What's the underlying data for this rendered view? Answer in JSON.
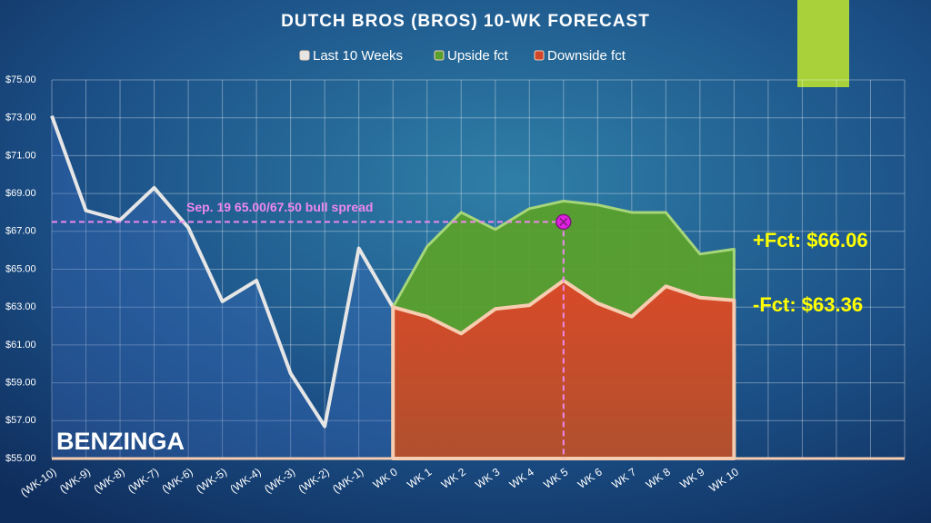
{
  "chart_data": {
    "type": "area",
    "title": "DUTCH BROS (BROS) 10-WK FORECAST",
    "categories": [
      "(WK-10)",
      "(WK-9)",
      "(WK-8)",
      "(WK-7)",
      "(WK-6)",
      "(WK-5)",
      "(WK-4)",
      "(WK-3)",
      "(WK-2)",
      "(WK-1)",
      "WK 0",
      "WK 1",
      "WK 2",
      "WK 3",
      "WK 4",
      "WK 5",
      "WK 6",
      "WK 7",
      "WK 8",
      "WK 9",
      "WK 10",
      null,
      null,
      null,
      null,
      null
    ],
    "series": [
      {
        "name": "Last 10 Weeks",
        "color": "#e6e6e6",
        "values": [
          73.1,
          68.1,
          67.6,
          69.3,
          67.2,
          63.3,
          64.4,
          59.5,
          56.7,
          66.1,
          63.0,
          null,
          null,
          null,
          null,
          null,
          null,
          null,
          null,
          null,
          null,
          null,
          null,
          null,
          null,
          null
        ]
      },
      {
        "name": "Upside fct",
        "color": "#5aa02c",
        "values": [
          null,
          null,
          null,
          null,
          null,
          null,
          null,
          null,
          null,
          null,
          63.0,
          66.2,
          68.0,
          67.1,
          68.2,
          68.6,
          68.4,
          68.0,
          68.0,
          65.8,
          66.06,
          null,
          null,
          null,
          null,
          null
        ]
      },
      {
        "name": "Downside fct",
        "color": "#d2462a",
        "values": [
          null,
          null,
          null,
          null,
          null,
          null,
          null,
          null,
          null,
          null,
          63.0,
          62.5,
          61.6,
          62.9,
          63.1,
          64.4,
          63.2,
          62.5,
          64.1,
          63.5,
          63.36,
          null,
          null,
          null,
          null,
          null
        ]
      }
    ],
    "ylim": [
      55,
      75
    ],
    "yticks": [
      {
        "value": 55,
        "label": "$55.00"
      },
      {
        "value": 57,
        "label": "$57.00"
      },
      {
        "value": 59,
        "label": "$59.00"
      },
      {
        "value": 61,
        "label": "$61.00"
      },
      {
        "value": 63,
        "label": "$63.00"
      },
      {
        "value": 65,
        "label": "$65.00"
      },
      {
        "value": 67,
        "label": "$67.00"
      },
      {
        "value": 69,
        "label": "$69.00"
      },
      {
        "value": 71,
        "label": "$71.00"
      },
      {
        "value": 73,
        "label": "$73.00"
      },
      {
        "value": 75,
        "label": "$75.00"
      }
    ],
    "grid": true,
    "legend": "top",
    "annotation": {
      "text": "Sep. 19 65.00/67.50 bull spread",
      "value": 67.5,
      "x": "WK 5",
      "color": "#ee88ee",
      "marker_color": "#e020e0"
    },
    "upside_label": "+Fct: $66.06",
    "downside_label": "-Fct: $63.36",
    "watermark": "BENZINGA"
  }
}
